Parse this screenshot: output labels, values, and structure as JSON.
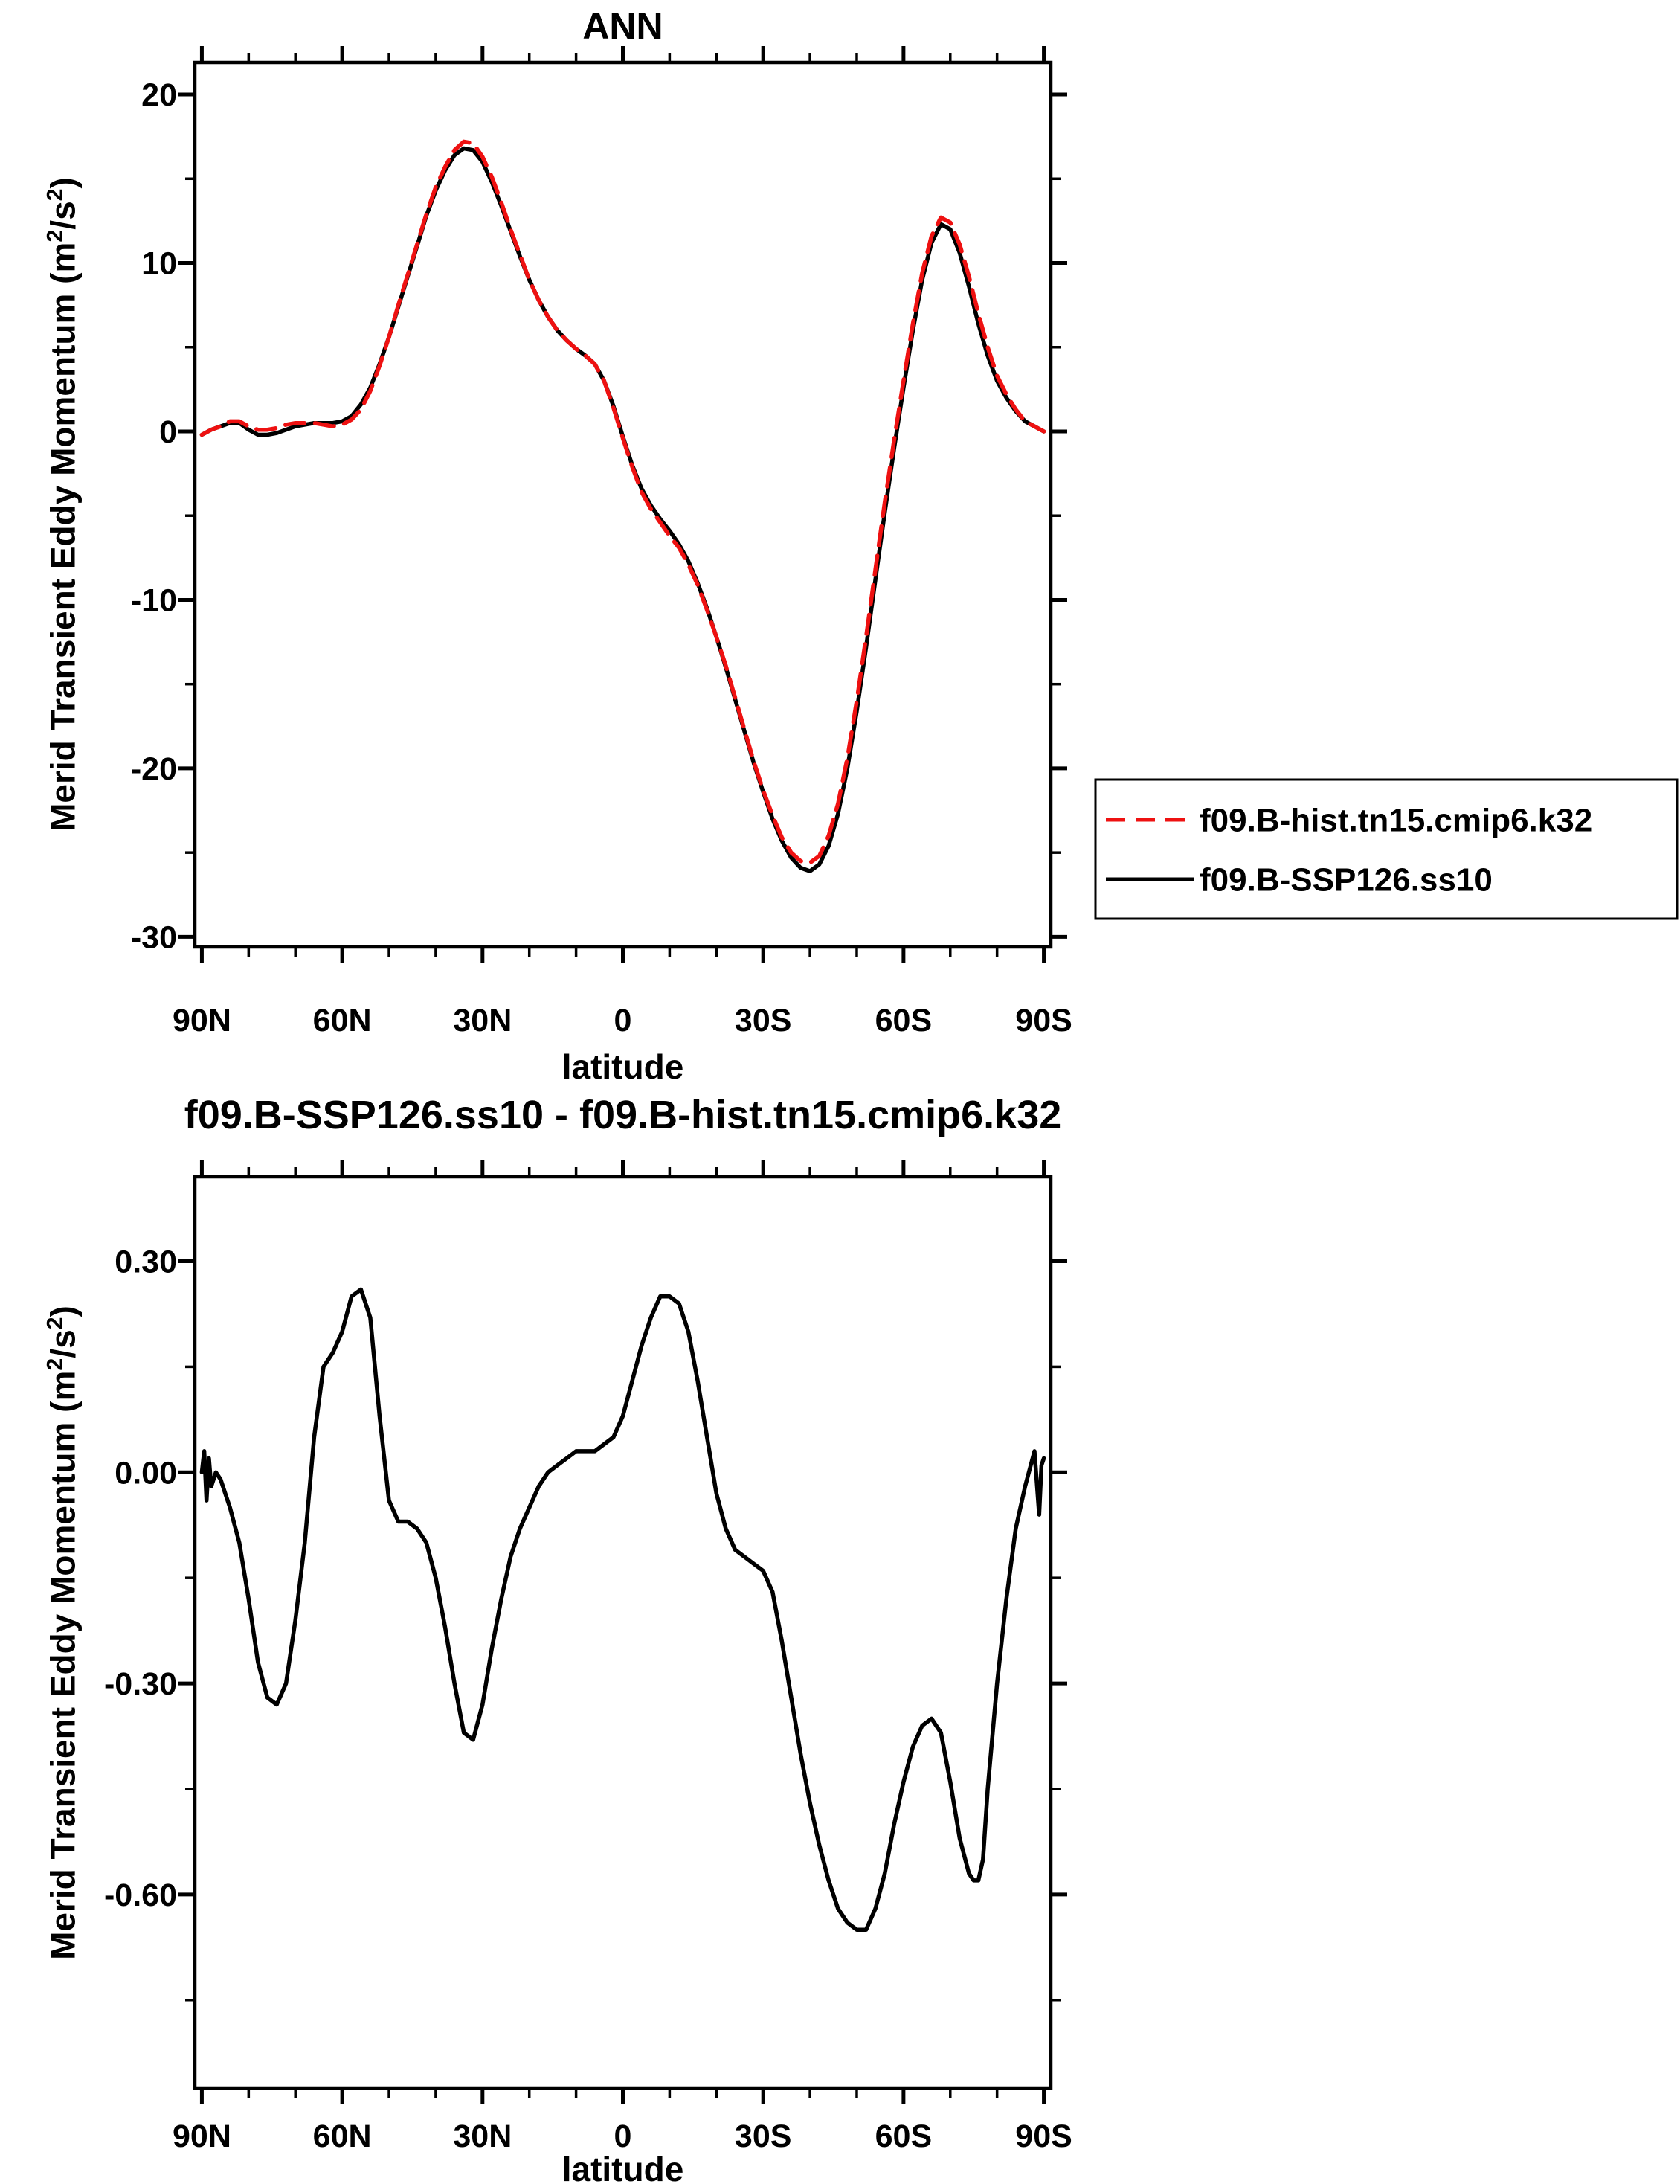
{
  "figure": {
    "background": "#ffffff",
    "axis_color": "#000000"
  },
  "chart_data": [
    {
      "type": "line",
      "title": "ANN",
      "xlabel": "latitude",
      "ylabel": "Merid Transient Eddy Momentum (m2/s2)",
      "ylabel_parts": [
        [
          "Merid Transient Eddy Momentum (m",
          false
        ],
        [
          "2",
          true
        ],
        [
          "/s",
          false
        ],
        [
          "2",
          true
        ],
        [
          ")",
          false
        ]
      ],
      "x_convention": "degrees latitude, positive = N",
      "xlim": [
        91.5,
        -91.5
      ],
      "ylim": [
        -30.6,
        21.9
      ],
      "x_ticks": {
        "major": [
          {
            "lat": 90,
            "label": "90N"
          },
          {
            "lat": 60,
            "label": "60N"
          },
          {
            "lat": 30,
            "label": "30N"
          },
          {
            "lat": 0,
            "label": "0"
          },
          {
            "lat": -30,
            "label": "30S"
          },
          {
            "lat": -60,
            "label": "60S"
          },
          {
            "lat": -90,
            "label": "90S"
          }
        ],
        "minor_step": 10
      },
      "y_ticks": {
        "major": [
          {
            "v": 20,
            "label": "20"
          },
          {
            "v": 10,
            "label": "10"
          },
          {
            "v": 0,
            "label": "0"
          },
          {
            "v": -10,
            "label": "-10"
          },
          {
            "v": -20,
            "label": "-20"
          },
          {
            "v": -30,
            "label": "-30"
          }
        ],
        "minor": [
          15,
          5,
          -5,
          -15,
          -25
        ]
      },
      "legend": {
        "position": "right-middle",
        "labels_from_series": true
      },
      "series": [
        {
          "name": "f09.B-hist.tn15.cmip6.k32",
          "color": "#ee1111",
          "dash": [
            26,
            14
          ],
          "lat": [
            90,
            88,
            86,
            84,
            82,
            80,
            78,
            76,
            74,
            72,
            70,
            68,
            66,
            64,
            62,
            60,
            58,
            56,
            54,
            52,
            50,
            48,
            46,
            44,
            42,
            40,
            38,
            36,
            34,
            32,
            30,
            28,
            26,
            24,
            22,
            20,
            18,
            16,
            14,
            12,
            10,
            8,
            6,
            4,
            2,
            0,
            -2,
            -4,
            -6,
            -8,
            -10,
            -12,
            -14,
            -16,
            -18,
            -20,
            -22,
            -24,
            -26,
            -28,
            -30,
            -32,
            -34,
            -36,
            -38,
            -40,
            -42,
            -44,
            -46,
            -48,
            -50,
            -52,
            -54,
            -56,
            -58,
            -60,
            -62,
            -64,
            -66,
            -68,
            -70,
            -72,
            -74,
            -76,
            -78,
            -80,
            -82,
            -84,
            -86,
            -88,
            -90
          ],
          "values": [
            -0.2,
            0.1,
            0.3,
            0.6,
            0.6,
            0.3,
            0.1,
            0.1,
            0.2,
            0.4,
            0.5,
            0.5,
            0.5,
            0.4,
            0.3,
            0.4,
            0.7,
            1.3,
            2.4,
            3.9,
            5.6,
            7.5,
            9.3,
            11.1,
            12.9,
            14.5,
            15.7,
            16.7,
            17.2,
            17.1,
            16.3,
            15.1,
            13.6,
            12.0,
            10.5,
            9.0,
            7.8,
            6.8,
            6.0,
            5.4,
            4.9,
            4.5,
            4.0,
            3.0,
            1.4,
            -0.4,
            -2.1,
            -3.6,
            -4.6,
            -5.4,
            -6.2,
            -6.9,
            -7.9,
            -9.1,
            -10.6,
            -12.2,
            -13.9,
            -15.8,
            -17.7,
            -19.6,
            -21.3,
            -22.8,
            -24.1,
            -25.0,
            -25.5,
            -25.6,
            -25.2,
            -24.0,
            -22.1,
            -19.4,
            -16.0,
            -12.2,
            -8.2,
            -4.2,
            -0.5,
            3.0,
            6.4,
            9.4,
            11.6,
            12.7,
            12.4,
            11.1,
            9.2,
            7.0,
            5.0,
            3.3,
            2.2,
            1.3,
            0.6,
            0.3,
            0.0
          ]
        },
        {
          "name": "f09.B-SSP126.ss10",
          "color": "#000000",
          "dash": null,
          "lat": [
            90,
            88,
            86,
            84,
            82,
            80,
            78,
            76,
            74,
            72,
            70,
            68,
            66,
            64,
            62,
            60,
            58,
            56,
            54,
            52,
            50,
            48,
            46,
            44,
            42,
            40,
            38,
            36,
            34,
            32,
            30,
            28,
            26,
            24,
            22,
            20,
            18,
            16,
            14,
            12,
            10,
            8,
            6,
            4,
            2,
            0,
            -2,
            -4,
            -6,
            -8,
            -10,
            -12,
            -14,
            -16,
            -18,
            -20,
            -22,
            -24,
            -26,
            -28,
            -30,
            -32,
            -34,
            -36,
            -38,
            -40,
            -42,
            -44,
            -46,
            -48,
            -50,
            -52,
            -54,
            -56,
            -58,
            -60,
            -62,
            -64,
            -66,
            -68,
            -70,
            -72,
            -74,
            -76,
            -78,
            -80,
            -82,
            -84,
            -86,
            -88,
            -90
          ],
          "values": [
            -0.2,
            0.1,
            0.3,
            0.5,
            0.5,
            0.1,
            -0.2,
            -0.2,
            -0.1,
            0.1,
            0.3,
            0.4,
            0.5,
            0.5,
            0.5,
            0.6,
            0.9,
            1.6,
            2.6,
            4.0,
            5.6,
            7.4,
            9.2,
            11.0,
            12.8,
            14.3,
            15.5,
            16.4,
            16.8,
            16.7,
            16.0,
            14.8,
            13.4,
            11.9,
            10.4,
            9.0,
            7.8,
            6.8,
            6.0,
            5.4,
            4.9,
            4.5,
            4.0,
            3.0,
            1.5,
            -0.3,
            -2.0,
            -3.4,
            -4.4,
            -5.2,
            -5.9,
            -6.7,
            -7.7,
            -9.0,
            -10.5,
            -12.2,
            -14.0,
            -15.9,
            -17.8,
            -19.7,
            -21.4,
            -23.0,
            -24.3,
            -25.3,
            -25.9,
            -26.1,
            -25.7,
            -24.6,
            -22.7,
            -20.0,
            -16.6,
            -12.8,
            -8.8,
            -4.8,
            -1.0,
            2.6,
            6.0,
            9.0,
            11.2,
            12.3,
            12.0,
            10.6,
            8.6,
            6.4,
            4.5,
            3.0,
            2.0,
            1.2,
            0.6,
            0.3,
            0.0
          ]
        }
      ]
    },
    {
      "type": "line",
      "title": "f09.B-SSP126.ss10 - f09.B-hist.tn15.cmip6.k32",
      "xlabel": "latitude",
      "ylabel": "Merid Transient Eddy Momentum (m2/s2)",
      "ylabel_parts": [
        [
          "Merid Transient Eddy Momentum (m",
          false
        ],
        [
          "2",
          true
        ],
        [
          "/s",
          false
        ],
        [
          "2",
          true
        ],
        [
          ")",
          false
        ]
      ],
      "x_convention": "degrees latitude, positive = N",
      "xlim": [
        91.5,
        -91.5
      ],
      "ylim": [
        -0.875,
        0.42
      ],
      "x_ticks": {
        "major": [
          {
            "lat": 90,
            "label": "90N"
          },
          {
            "lat": 60,
            "label": "60N"
          },
          {
            "lat": 30,
            "label": "30N"
          },
          {
            "lat": 0,
            "label": "0"
          },
          {
            "lat": -30,
            "label": "30S"
          },
          {
            "lat": -60,
            "label": "60S"
          },
          {
            "lat": -90,
            "label": "90S"
          }
        ],
        "minor_step": 10
      },
      "y_ticks": {
        "major": [
          {
            "v": 0.3,
            "label": "0.30"
          },
          {
            "v": 0.0,
            "label": "0.00"
          },
          {
            "v": -0.3,
            "label": "-0.30"
          },
          {
            "v": -0.6,
            "label": "-0.60"
          }
        ],
        "minor": [
          0.15,
          -0.15,
          -0.45,
          -0.75
        ]
      },
      "legend": null,
      "series": [
        {
          "name": "f09.B-SSP126.ss10 - f09.B-hist.tn15.cmip6.k32",
          "color": "#000000",
          "dash": null,
          "lat": [
            90,
            89.5,
            89,
            88.5,
            88,
            87,
            86,
            84,
            82,
            80,
            78,
            76,
            74,
            72,
            70,
            68,
            66,
            64,
            62,
            60,
            58,
            56,
            54,
            52,
            50,
            48,
            46,
            44,
            42,
            40,
            38,
            36,
            34,
            32,
            30,
            28,
            26,
            24,
            22,
            20,
            18,
            16,
            14,
            12,
            10,
            8,
            6,
            4,
            2,
            0,
            -2,
            -4,
            -6,
            -8,
            -10,
            -12,
            -14,
            -16,
            -18,
            -20,
            -22,
            -24,
            -26,
            -28,
            -30,
            -32,
            -34,
            -36,
            -38,
            -40,
            -42,
            -44,
            -46,
            -48,
            -50,
            -52,
            -54,
            -56,
            -58,
            -60,
            -62,
            -64,
            -66,
            -68,
            -70,
            -72,
            -74,
            -75,
            -76,
            -77,
            -78,
            -80,
            -82,
            -84,
            -86,
            -88,
            -89,
            -89.5,
            -90
          ],
          "values": [
            0.0,
            0.03,
            -0.04,
            0.02,
            -0.02,
            0.0,
            -0.01,
            -0.05,
            -0.1,
            -0.18,
            -0.27,
            -0.32,
            -0.33,
            -0.3,
            -0.21,
            -0.1,
            0.05,
            0.15,
            0.17,
            0.2,
            0.25,
            0.26,
            0.22,
            0.08,
            -0.04,
            -0.07,
            -0.07,
            -0.08,
            -0.1,
            -0.15,
            -0.22,
            -0.3,
            -0.37,
            -0.38,
            -0.33,
            -0.25,
            -0.18,
            -0.12,
            -0.08,
            -0.05,
            -0.02,
            0.0,
            0.01,
            0.02,
            0.03,
            0.03,
            0.03,
            0.04,
            0.05,
            0.08,
            0.13,
            0.18,
            0.22,
            0.25,
            0.25,
            0.24,
            0.2,
            0.13,
            0.05,
            -0.03,
            -0.08,
            -0.11,
            -0.12,
            -0.13,
            -0.14,
            -0.17,
            -0.24,
            -0.32,
            -0.4,
            -0.47,
            -0.53,
            -0.58,
            -0.62,
            -0.64,
            -0.65,
            -0.65,
            -0.62,
            -0.57,
            -0.5,
            -0.44,
            -0.39,
            -0.36,
            -0.35,
            -0.37,
            -0.44,
            -0.52,
            -0.57,
            -0.58,
            -0.58,
            -0.55,
            -0.45,
            -0.3,
            -0.18,
            -0.08,
            -0.02,
            0.03,
            -0.06,
            0.01,
            0.02
          ]
        }
      ]
    }
  ]
}
